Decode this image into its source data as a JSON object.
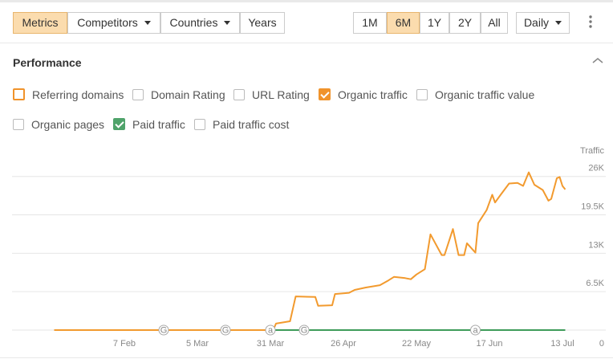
{
  "toolbar": {
    "tabs": [
      {
        "label": "Metrics",
        "active": true
      },
      {
        "label": "Competitors",
        "dropdown": true
      },
      {
        "label": "Countries",
        "dropdown": true
      },
      {
        "label": "Years"
      }
    ],
    "ranges": [
      {
        "label": "1M"
      },
      {
        "label": "6M",
        "active": true
      },
      {
        "label": "1Y"
      },
      {
        "label": "2Y"
      },
      {
        "label": "All"
      }
    ],
    "interval": "Daily"
  },
  "panel": {
    "title": "Performance",
    "checkboxes": [
      {
        "label": "Referring domains",
        "checked": false,
        "color": "#f0932b"
      },
      {
        "label": "Domain Rating",
        "checked": false
      },
      {
        "label": "URL Rating",
        "checked": false
      },
      {
        "label": "Organic traffic",
        "checked": true,
        "color": "#f0932b"
      },
      {
        "label": "Organic traffic value",
        "checked": false
      },
      {
        "label": "Organic pages",
        "checked": false
      },
      {
        "label": "Paid traffic",
        "checked": true,
        "color": "#4fa36a"
      },
      {
        "label": "Paid traffic cost",
        "checked": false
      }
    ]
  },
  "chart_data": {
    "type": "line",
    "y_label": "Traffic",
    "grid": true,
    "x": [
      13,
      91,
      92,
      97,
      99,
      106,
      107,
      112,
      113,
      118,
      120,
      124,
      129,
      132,
      134,
      138,
      140,
      142,
      145,
      147,
      151,
      152,
      155,
      157,
      159,
      160,
      163,
      164,
      167,
      169,
      170,
      172,
      175,
      178,
      180,
      182,
      184,
      187,
      189,
      190,
      192,
      193,
      194,
      195
    ],
    "series": [
      {
        "name": "Organic traffic",
        "color": "#f29a2e",
        "values": [
          0,
          0,
          1100,
          1500,
          5700,
          5600,
          4100,
          4200,
          6100,
          6300,
          6800,
          7200,
          7600,
          8400,
          9000,
          8800,
          8600,
          9400,
          10300,
          16200,
          12700,
          12700,
          17100,
          12700,
          12700,
          14700,
          13100,
          18100,
          20300,
          22900,
          21600,
          22900,
          24800,
          24900,
          24400,
          26700,
          24600,
          23700,
          21900,
          22200,
          25700,
          25900,
          24400,
          23800
        ]
      },
      {
        "name": "Paid traffic",
        "color": "#3f9c5a",
        "values": [
          0,
          0,
          0,
          0,
          0,
          0,
          0,
          0,
          0,
          0,
          0,
          0,
          0,
          0,
          0,
          0,
          0,
          0,
          0,
          0,
          0,
          0,
          0,
          0,
          0,
          0,
          0,
          0,
          0,
          0,
          0,
          0,
          0,
          0,
          0,
          0,
          0,
          0,
          0,
          0,
          0,
          0,
          0,
          0
        ]
      }
    ],
    "xlim": [
      0,
      209
    ],
    "xticks": [
      {
        "value": 38,
        "label": "7 Feb"
      },
      {
        "value": 64,
        "label": "5 Mar"
      },
      {
        "value": 90,
        "label": "31 Mar"
      },
      {
        "value": 116,
        "label": "26 Apr"
      },
      {
        "value": 142,
        "label": "22 May"
      },
      {
        "value": 168,
        "label": "17 Jun"
      },
      {
        "value": 194,
        "label": "13 Jul"
      }
    ],
    "ylim": [
      0,
      28000
    ],
    "yticks": [
      0,
      {
        "value": 6500,
        "label": "6.5K"
      },
      {
        "value": 13000,
        "label": "13K"
      },
      {
        "value": 19500,
        "label": "19.5K"
      },
      {
        "value": 26000,
        "label": "26K"
      }
    ],
    "annotations": [
      {
        "x": 52,
        "label": "G"
      },
      {
        "x": 74,
        "label": "G"
      },
      {
        "x": 90,
        "label": "a"
      },
      {
        "x": 102,
        "label": "G"
      },
      {
        "x": 163,
        "label": "a"
      }
    ]
  }
}
